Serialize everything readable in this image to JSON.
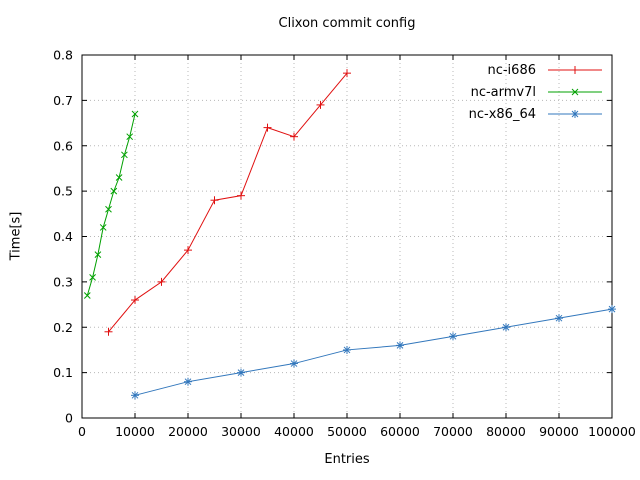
{
  "chart_data": {
    "type": "line",
    "title": "Clixon commit config",
    "xlabel": "Entries",
    "ylabel": "Time[s]",
    "xlim": [
      0,
      100000
    ],
    "ylim": [
      0,
      0.8
    ],
    "grid": true,
    "legend_position": "top-right-inside",
    "xticks": [
      0,
      10000,
      20000,
      30000,
      40000,
      50000,
      60000,
      70000,
      80000,
      90000,
      100000
    ],
    "xtick_labels": [
      "0",
      "10000",
      "20000",
      "30000",
      "40000",
      "50000",
      "60000",
      "70000",
      "80000",
      "90000",
      "100000"
    ],
    "yticks": [
      0,
      0.1,
      0.2,
      0.3,
      0.4,
      0.5,
      0.6,
      0.7,
      0.8
    ],
    "ytick_labels": [
      "0",
      "0.1",
      "0.2",
      "0.3",
      "0.4",
      "0.5",
      "0.6",
      "0.7",
      "0.8"
    ],
    "series": [
      {
        "name": "nc-i686",
        "color": "#e01010",
        "marker": "plus",
        "x": [
          5000,
          10000,
          15000,
          20000,
          25000,
          30000,
          35000,
          40000,
          45000,
          50000
        ],
        "y": [
          0.19,
          0.26,
          0.3,
          0.37,
          0.48,
          0.49,
          0.64,
          0.62,
          0.69,
          0.76
        ]
      },
      {
        "name": "nc-armv7l",
        "color": "#00a000",
        "marker": "cross",
        "x": [
          1000,
          2000,
          3000,
          4000,
          5000,
          6000,
          7000,
          8000,
          9000,
          10000
        ],
        "y": [
          0.27,
          0.31,
          0.36,
          0.42,
          0.46,
          0.5,
          0.53,
          0.58,
          0.62,
          0.67
        ]
      },
      {
        "name": "nc-x86_64",
        "color": "#3277bc",
        "marker": "asterisk",
        "x": [
          10000,
          20000,
          30000,
          40000,
          50000,
          60000,
          70000,
          80000,
          90000,
          100000
        ],
        "y": [
          0.05,
          0.08,
          0.1,
          0.12,
          0.15,
          0.16,
          0.18,
          0.2,
          0.22,
          0.24
        ]
      }
    ]
  }
}
